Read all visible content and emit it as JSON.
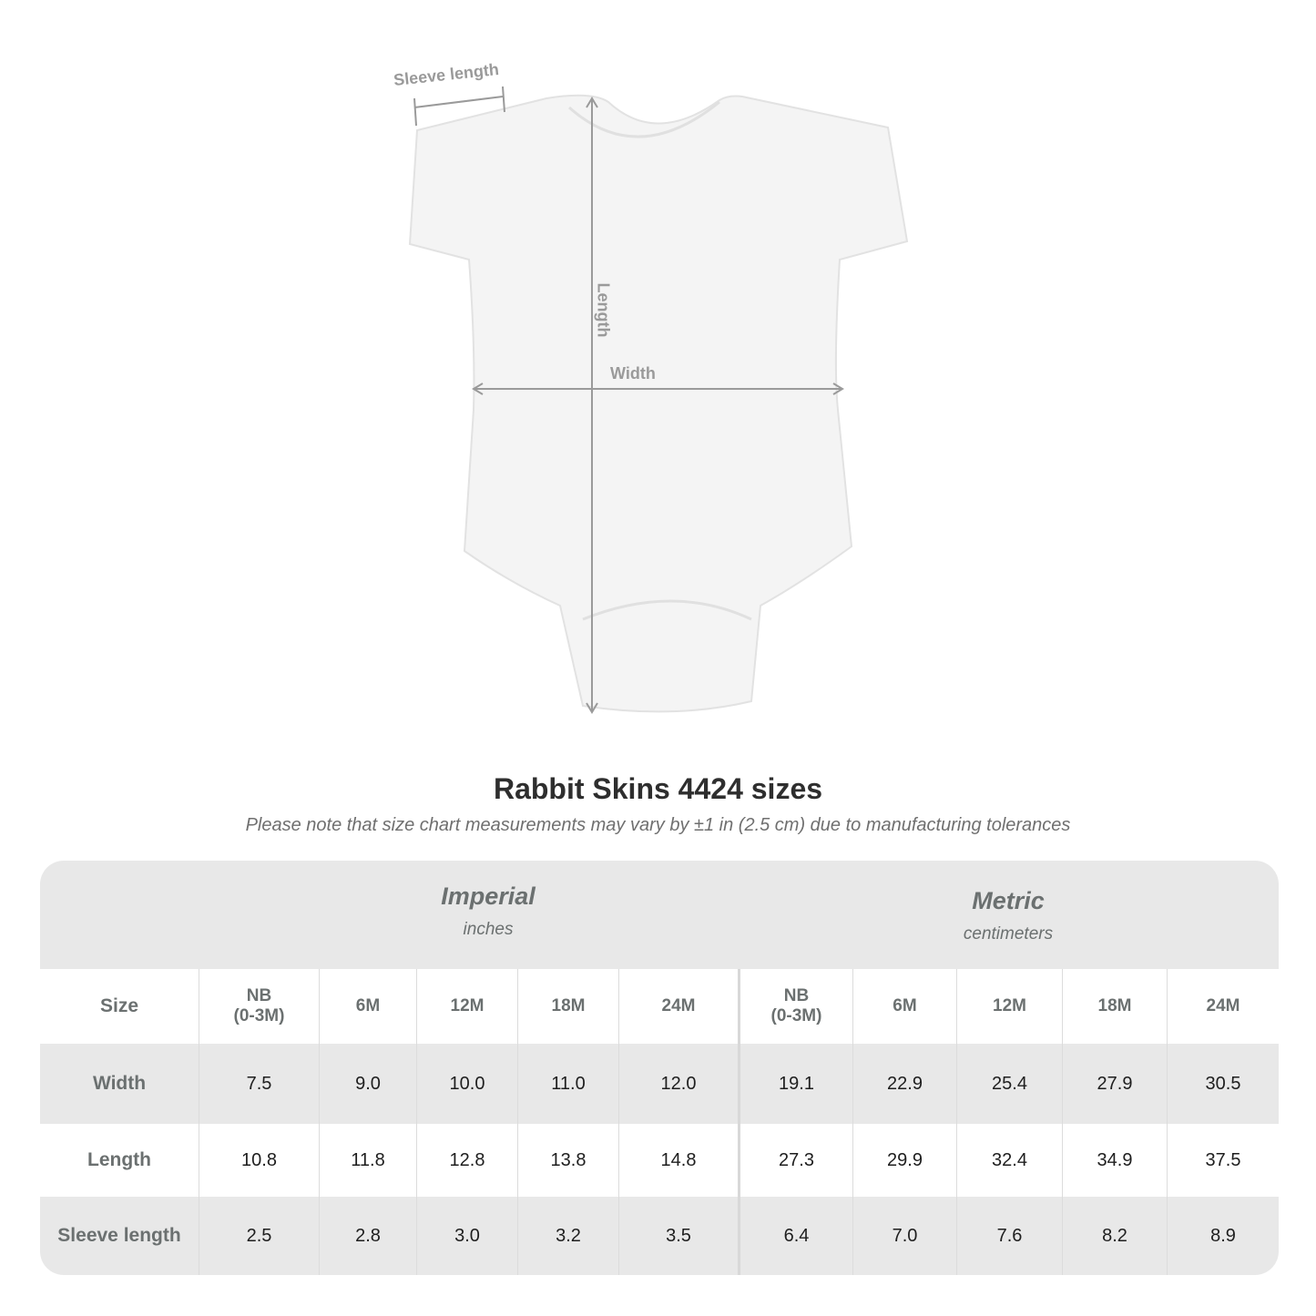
{
  "diagram": {
    "labels": {
      "sleeve": "Sleeve length",
      "length": "Length",
      "width": "Width"
    },
    "colors": {
      "garment": "#f4f4f4",
      "measure_lines": "#9a9a9a"
    }
  },
  "title": "Rabbit Skins 4424 sizes",
  "subtitle": "Please note that size chart measurements may vary by ±1 in (2.5 cm) due to manufacturing tolerances",
  "table": {
    "imperial": {
      "name": "Imperial",
      "unit": "inches"
    },
    "metric": {
      "name": "Metric",
      "unit": "centimeters"
    },
    "size_label": "Size",
    "sizes": [
      "NB\n(0-3M)",
      "6M",
      "12M",
      "18M",
      "24M"
    ],
    "rows": [
      {
        "label": "Width",
        "imperial": [
          "7.5",
          "9.0",
          "10.0",
          "11.0",
          "12.0"
        ],
        "metric": [
          "19.1",
          "22.9",
          "25.4",
          "27.9",
          "30.5"
        ]
      },
      {
        "label": "Length",
        "imperial": [
          "10.8",
          "11.8",
          "12.8",
          "13.8",
          "14.8"
        ],
        "metric": [
          "27.3",
          "29.9",
          "32.4",
          "34.9",
          "37.5"
        ]
      },
      {
        "label": "Sleeve length",
        "imperial": [
          "2.5",
          "2.8",
          "3.0",
          "3.2",
          "3.5"
        ],
        "metric": [
          "6.4",
          "7.0",
          "7.6",
          "8.2",
          "8.9"
        ]
      }
    ],
    "colors": {
      "band": "#e8e8e8",
      "header_text": "#6b7070"
    }
  }
}
